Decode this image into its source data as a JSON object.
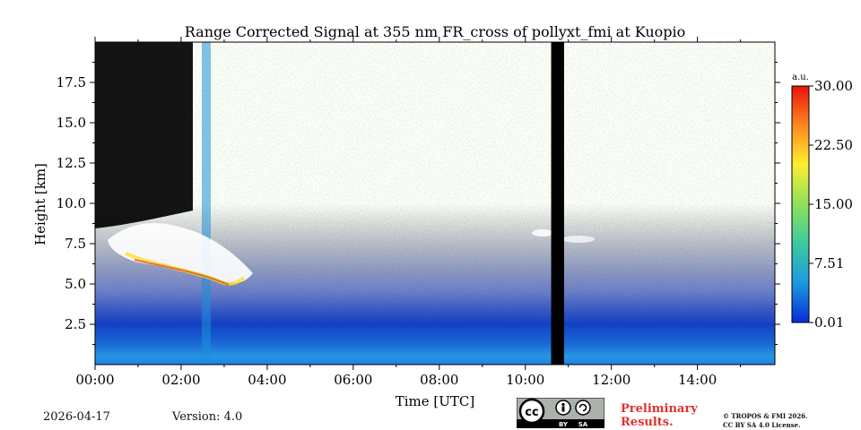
{
  "chart_data": {
    "type": "heatmap",
    "title": "Range Corrected Signal at 355 nm FR_cross of pollyxt_fmi at Kuopio",
    "xlabel": "Time [UTC]",
    "ylabel": "Height [km]",
    "xlim": [
      0,
      15.8
    ],
    "ylim": [
      0,
      20
    ],
    "x_ticks": [
      0,
      2,
      4,
      6,
      8,
      10,
      12,
      14
    ],
    "x_tick_labels": [
      "00:00",
      "02:00",
      "04:00",
      "06:00",
      "08:00",
      "10:00",
      "12:00",
      "14:00"
    ],
    "y_ticks": [
      2.5,
      5.0,
      7.5,
      10.0,
      12.5,
      15.0,
      17.5
    ],
    "y_tick_labels": [
      "2.5",
      "5.0",
      "7.5",
      "10.0",
      "12.5",
      "15.0",
      "17.5"
    ],
    "colorbar": {
      "label": "a.u.",
      "range": [
        0.01,
        30.0
      ],
      "ticks": [
        0.01,
        7.51,
        15.0,
        22.5,
        30.0
      ],
      "tick_labels": [
        "0.01",
        "7.51",
        "15.00",
        "22.50",
        "30.00"
      ],
      "colormap": [
        "#0a2bd6",
        "#1a9be0",
        "#3cc8a0",
        "#8ee05a",
        "#ffee30",
        "#ff8a1e",
        "#e8140c"
      ]
    },
    "features": {
      "no_data_gap_hours": [
        10.6,
        10.9
      ],
      "cloud_layer_km": [
        4.8,
        8.5
      ],
      "cloud_time_hours": [
        0.3,
        3.8
      ]
    }
  },
  "footer": {
    "date": "2026-04-17",
    "version": "Version: 4.0",
    "preliminary_line1": "Preliminary",
    "preliminary_line2": "Results.",
    "copyright_line1": "© TROPOS & FMI 2026.",
    "copyright_line2": "CC BY SA 4.0 License.",
    "cc_label": "cc",
    "by_label": "BY",
    "sa_label": "SA"
  }
}
